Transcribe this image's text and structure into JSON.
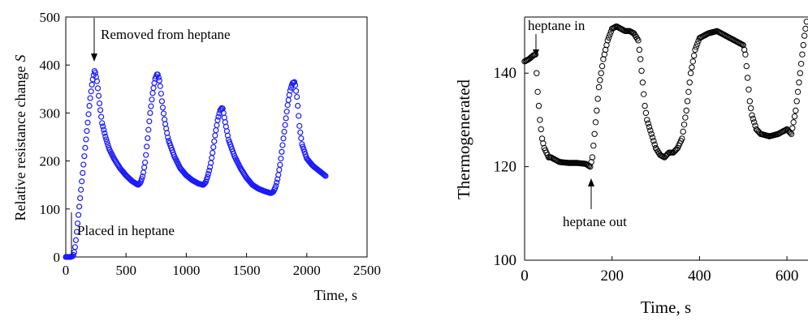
{
  "chart_data": [
    {
      "type": "scatter",
      "title": "",
      "xlabel": "Time, s",
      "ylabel": "Relative resistance change",
      "ylabel_symbol": "S",
      "xlim": [
        0,
        2500
      ],
      "ylim": [
        0,
        500
      ],
      "xticks": [
        "0",
        "500",
        "1000",
        "1500",
        "2000",
        "2500"
      ],
      "yticks": [
        "0",
        "100",
        "200",
        "300",
        "400",
        "500"
      ],
      "grid": false,
      "marker": "open-circle",
      "color": "#1a1aff",
      "annotations": [
        {
          "text": "Removed from heptane",
          "x": 240,
          "y": 392
        },
        {
          "text": "Placed in heptane",
          "x": 55,
          "y": 0
        }
      ],
      "series": [
        {
          "x": [
            0,
            20,
            40,
            60,
            70,
            80,
            100,
            120,
            140,
            160,
            180,
            200,
            220,
            240,
            260,
            280,
            300,
            330,
            360,
            400,
            450,
            500,
            550,
            600,
            620,
            640,
            660,
            680,
            700,
            720,
            740,
            760,
            780,
            800,
            820,
            850,
            900,
            950,
            1000,
            1050,
            1100,
            1140,
            1160,
            1180,
            1200,
            1220,
            1240,
            1260,
            1280,
            1300,
            1320,
            1350,
            1400,
            1450,
            1500,
            1550,
            1600,
            1650,
            1700,
            1720,
            1740,
            1760,
            1780,
            1800,
            1820,
            1840,
            1860,
            1880,
            1900,
            1920,
            1940,
            1960,
            2000,
            2050,
            2100,
            2160
          ],
          "y": [
            0,
            0,
            0,
            2,
            10,
            25,
            75,
            125,
            175,
            225,
            275,
            325,
            365,
            390,
            365,
            320,
            280,
            250,
            225,
            205,
            185,
            170,
            158,
            150,
            155,
            170,
            200,
            250,
            300,
            340,
            370,
            383,
            365,
            320,
            285,
            245,
            210,
            185,
            170,
            160,
            153,
            150,
            155,
            170,
            190,
            220,
            255,
            285,
            305,
            312,
            285,
            245,
            210,
            185,
            165,
            150,
            142,
            137,
            133,
            135,
            145,
            165,
            195,
            235,
            275,
            315,
            345,
            362,
            365,
            330,
            270,
            235,
            205,
            190,
            180,
            168
          ]
        }
      ]
    },
    {
      "type": "scatter",
      "title": "",
      "xlabel": "Time, s",
      "ylabel": "Thermogenerated",
      "xlim": [
        0,
        650
      ],
      "ylim": [
        100,
        152
      ],
      "xticks": [
        "0",
        "200",
        "400",
        "600"
      ],
      "yticks": [
        "100",
        "120",
        "140"
      ],
      "grid": false,
      "marker": "open-circle",
      "color": "#000000",
      "annotations": [
        {
          "text": "heptane in",
          "x": 25,
          "y": 144
        },
        {
          "text": "heptane out",
          "x": 150,
          "y": 120
        }
      ],
      "series": [
        {
          "x": [
            0,
            10,
            20,
            25,
            30,
            35,
            40,
            45,
            50,
            55,
            60,
            70,
            80,
            100,
            120,
            140,
            150,
            155,
            160,
            165,
            170,
            180,
            190,
            200,
            210,
            220,
            230,
            240,
            250,
            260,
            265,
            270,
            275,
            280,
            290,
            300,
            310,
            320,
            330,
            340,
            350,
            360,
            370,
            380,
            390,
            400,
            420,
            440,
            460,
            480,
            500,
            505,
            510,
            515,
            520,
            530,
            540,
            560,
            580,
            600,
            610,
            620,
            630,
            640,
            645
          ],
          "y": [
            142.5,
            143,
            143.8,
            144,
            136,
            130,
            126,
            124,
            123,
            122,
            122,
            121.5,
            121,
            120.8,
            120.8,
            120.6,
            120,
            122,
            127,
            132,
            137,
            143,
            147,
            149.5,
            150,
            149.5,
            149,
            149,
            148.5,
            147,
            143,
            138,
            133,
            130,
            127,
            124,
            122.5,
            122,
            123,
            123,
            124,
            126,
            132,
            140,
            145,
            147.5,
            148.5,
            149,
            148,
            147,
            146,
            144,
            139,
            134,
            131,
            128,
            127,
            126.5,
            127,
            128,
            127,
            132,
            140,
            148,
            151
          ]
        }
      ]
    }
  ]
}
